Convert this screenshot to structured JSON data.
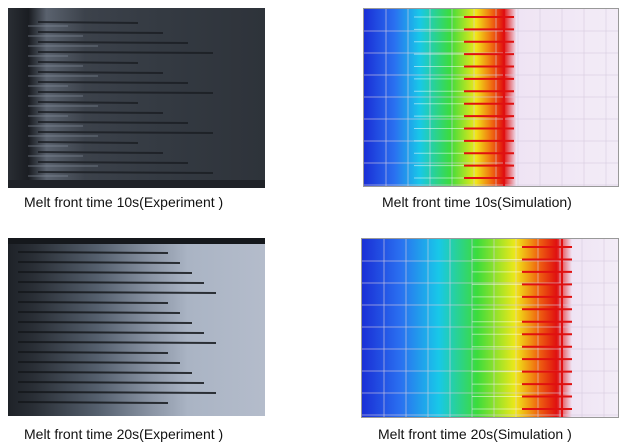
{
  "panels": [
    {
      "caption": "Melt front time 10s(Experiment )"
    },
    {
      "caption": "Melt front time 10s(Simulation)"
    },
    {
      "caption": "Melt front time 20s(Experiment )"
    },
    {
      "caption": "Melt front time 20s(Simulation )"
    }
  ],
  "colors": {
    "experiment_dark": "#1e2228",
    "experiment_light": "#aab4c4",
    "sim_blue": "#1a2fd6",
    "sim_cyan": "#18c8e8",
    "sim_green": "#3cdc3c",
    "sim_yellow": "#f0e818",
    "sim_red": "#e01010",
    "sim_unfilled": "#efe4f4"
  }
}
